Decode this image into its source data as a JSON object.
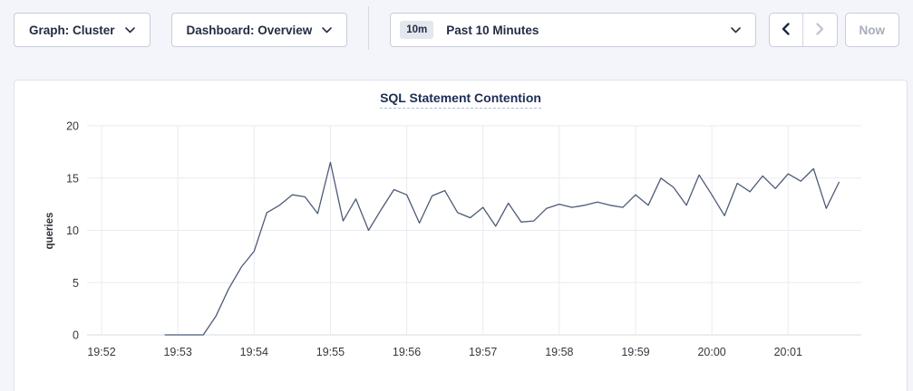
{
  "toolbar": {
    "graph_dropdown": {
      "label": "Graph: Cluster"
    },
    "dashboard_dropdown": {
      "label": "Dashboard: Overview"
    },
    "time_range": {
      "badge": "10m",
      "label": "Past 10 Minutes"
    },
    "now_label": "Now"
  },
  "chart_data": {
    "type": "line",
    "title": "SQL Statement Contention",
    "xlabel": "",
    "ylabel": "queries",
    "ylim": [
      0,
      20
    ],
    "yticks": [
      0,
      5,
      10,
      15,
      20
    ],
    "xticks": [
      "19:52",
      "19:53",
      "19:54",
      "19:55",
      "19:56",
      "19:57",
      "19:58",
      "19:59",
      "20:00",
      "20:01"
    ],
    "grid": true,
    "legend": "none",
    "series": [
      {
        "name": "queries",
        "color": "#4e5a77",
        "times": [
          "19:52:50",
          "19:53:00",
          "19:53:10",
          "19:53:20",
          "19:53:30",
          "19:53:40",
          "19:53:50",
          "19:54:00",
          "19:54:10",
          "19:54:20",
          "19:54:30",
          "19:54:40",
          "19:54:50",
          "19:55:00",
          "19:55:10",
          "19:55:20",
          "19:55:30",
          "19:55:40",
          "19:55:50",
          "19:56:00",
          "19:56:10",
          "19:56:20",
          "19:56:30",
          "19:56:40",
          "19:56:50",
          "19:57:00",
          "19:57:10",
          "19:57:20",
          "19:57:30",
          "19:57:40",
          "19:57:50",
          "19:58:00",
          "19:58:10",
          "19:58:20",
          "19:58:30",
          "19:58:40",
          "19:58:50",
          "19:59:00",
          "19:59:10",
          "19:59:20",
          "19:59:30",
          "19:59:40",
          "19:59:50",
          "20:00:00",
          "20:00:10",
          "20:00:20",
          "20:00:30",
          "20:00:40",
          "20:00:50",
          "20:01:00",
          "20:01:10",
          "20:01:20",
          "20:01:30",
          "20:01:40"
        ],
        "values": [
          0,
          0,
          0,
          0,
          1.8,
          4.4,
          6.5,
          8,
          11.7,
          12.4,
          13.4,
          13.2,
          11.6,
          16.5,
          10.9,
          13,
          10,
          12,
          13.9,
          13.4,
          10.7,
          13.3,
          13.8,
          11.7,
          11.2,
          12.2,
          10.4,
          12.6,
          10.8,
          10.9,
          12.1,
          12.5,
          12.2,
          12.4,
          12.7,
          12.4,
          12.2,
          13.4,
          12.4,
          15,
          14.1,
          12.4,
          15.3,
          13.4,
          11.4,
          14.5,
          13.7,
          15.2,
          14,
          15.4,
          14.7,
          15.9,
          12.1,
          14.6
        ]
      }
    ]
  },
  "colors": {
    "page_bg": "#f4f5fa",
    "card_bg": "#ffffff",
    "line": "#4e5a77",
    "grid": "#e9ebf0",
    "zero_line": "#d9dbe1",
    "title": "#1d2d55",
    "tick_text": "#34383f",
    "button_text": "#242c43",
    "disabled_text": "#a7aebc",
    "border": "#c9cdd8"
  }
}
